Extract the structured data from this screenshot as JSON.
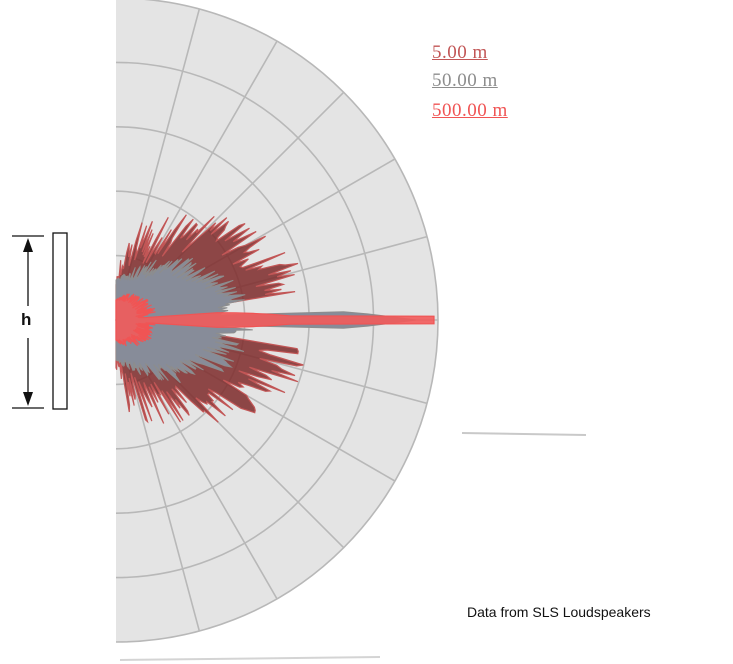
{
  "chart_data": {
    "type": "polar",
    "title": "",
    "angle_range_deg": [
      -90,
      90
    ],
    "rings": 5,
    "spokes_deg": [
      -75,
      -60,
      -45,
      -30,
      -15,
      0,
      15,
      30,
      45,
      60,
      75
    ],
    "legend_placement": "top-right",
    "series": [
      {
        "name": "5.00 m",
        "color": "#c25656"
      },
      {
        "name": "50.00 m",
        "color": "#8d8d8d"
      },
      {
        "name": "500.00 m",
        "color": "#f05454"
      }
    ],
    "annotation": "h",
    "source_note": "Data from SLS Loudspeakers"
  },
  "colors": {
    "plot_fill": "#e4e4e4",
    "grid": "#b8b8b8",
    "series_5m_fill": "#7e2a2a",
    "series_50m_fill": "#878c99",
    "series_500m_fill": "#f25b5b"
  }
}
